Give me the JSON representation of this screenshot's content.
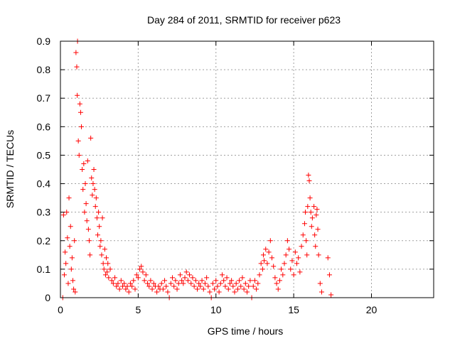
{
  "chart_data": {
    "type": "scatter",
    "title": "Day 284 of 2011, SRMTID for receiver p623",
    "xlabel": "GPS time / hours",
    "ylabel": "SRMTID / TECUs",
    "xlim": [
      0,
      24
    ],
    "ylim": [
      0,
      0.9
    ],
    "xticks": [
      0,
      5,
      10,
      15,
      20
    ],
    "yticks": [
      0,
      0.1,
      0.2,
      0.3,
      0.4,
      0.5,
      0.6,
      0.7,
      0.8,
      0.9
    ],
    "xtick_labels": [
      "0",
      "5",
      "10",
      "15",
      "20"
    ],
    "ytick_labels": [
      "0",
      "0.1",
      "0.2",
      "0.3",
      "0.4",
      "0.5",
      "0.6",
      "0.7",
      "0.8",
      "0.9"
    ],
    "grid": true,
    "marker": "plus",
    "marker_color": "#ff0000",
    "series": [
      {
        "points": [
          [
            0.15,
            0.0
          ],
          [
            0.2,
            0.29
          ],
          [
            0.25,
            0.08
          ],
          [
            0.3,
            0.16
          ],
          [
            0.35,
            0.12
          ],
          [
            0.4,
            0.3
          ],
          [
            0.45,
            0.21
          ],
          [
            0.5,
            0.05
          ],
          [
            0.55,
            0.35
          ],
          [
            0.6,
            0.18
          ],
          [
            0.65,
            0.25
          ],
          [
            0.7,
            0.1
          ],
          [
            0.75,
            0.14
          ],
          [
            0.8,
            0.06
          ],
          [
            0.85,
            0.03
          ],
          [
            0.9,
            0.2
          ],
          [
            0.95,
            0.02
          ],
          [
            1.0,
            0.86
          ],
          [
            1.05,
            0.81
          ],
          [
            1.08,
            0.71
          ],
          [
            1.1,
            0.9
          ],
          [
            1.15,
            0.55
          ],
          [
            1.2,
            0.5
          ],
          [
            1.25,
            0.68
          ],
          [
            1.3,
            0.65
          ],
          [
            1.35,
            0.6
          ],
          [
            1.4,
            0.45
          ],
          [
            1.45,
            0.38
          ],
          [
            1.5,
            0.47
          ],
          [
            1.55,
            0.3
          ],
          [
            1.6,
            0.4
          ],
          [
            1.65,
            0.33
          ],
          [
            1.7,
            0.27
          ],
          [
            1.75,
            0.48
          ],
          [
            1.8,
            0.24
          ],
          [
            1.85,
            0.2
          ],
          [
            1.9,
            0.15
          ],
          [
            1.95,
            0.56
          ],
          [
            2.0,
            0.42
          ],
          [
            2.05,
            0.36
          ],
          [
            2.1,
            0.4
          ],
          [
            2.15,
            0.45
          ],
          [
            2.2,
            0.38
          ],
          [
            2.25,
            0.32
          ],
          [
            2.3,
            0.35
          ],
          [
            2.35,
            0.28
          ],
          [
            2.4,
            0.22
          ],
          [
            2.45,
            0.3
          ],
          [
            2.5,
            0.25
          ],
          [
            2.55,
            0.18
          ],
          [
            2.6,
            0.2
          ],
          [
            2.65,
            0.15
          ],
          [
            2.7,
            0.28
          ],
          [
            2.75,
            0.12
          ],
          [
            2.8,
            0.1
          ],
          [
            2.85,
            0.17
          ],
          [
            2.9,
            0.08
          ],
          [
            2.95,
            0.14
          ],
          [
            3.0,
            0.09
          ],
          [
            3.05,
            0.12
          ],
          [
            3.1,
            0.07
          ],
          [
            3.2,
            0.1
          ],
          [
            3.3,
            0.06
          ],
          [
            3.4,
            0.05
          ],
          [
            3.5,
            0.07
          ],
          [
            3.6,
            0.04
          ],
          [
            3.7,
            0.05
          ],
          [
            3.8,
            0.03
          ],
          [
            3.9,
            0.06
          ],
          [
            4.0,
            0.04
          ],
          [
            4.1,
            0.05
          ],
          [
            4.2,
            0.03
          ],
          [
            4.3,
            0.04
          ],
          [
            4.4,
            0.02
          ],
          [
            4.5,
            0.05
          ],
          [
            4.6,
            0.04
          ],
          [
            4.7,
            0.06
          ],
          [
            4.8,
            0.03
          ],
          [
            4.9,
            0.08
          ],
          [
            5.0,
            0.07
          ],
          [
            5.1,
            0.1
          ],
          [
            5.2,
            0.11
          ],
          [
            5.3,
            0.09
          ],
          [
            5.4,
            0.06
          ],
          [
            5.5,
            0.08
          ],
          [
            5.6,
            0.05
          ],
          [
            5.7,
            0.04
          ],
          [
            5.8,
            0.06
          ],
          [
            5.9,
            0.03
          ],
          [
            6.0,
            0.05
          ],
          [
            6.1,
            0.04
          ],
          [
            6.2,
            0.02
          ],
          [
            6.3,
            0.04
          ],
          [
            6.4,
            0.03
          ],
          [
            6.5,
            0.05
          ],
          [
            6.6,
            0.03
          ],
          [
            6.7,
            0.06
          ],
          [
            6.8,
            0.04
          ],
          [
            6.9,
            0.02
          ],
          [
            7.0,
            0.0
          ],
          [
            7.1,
            0.05
          ],
          [
            7.2,
            0.07
          ],
          [
            7.3,
            0.04
          ],
          [
            7.4,
            0.06
          ],
          [
            7.5,
            0.03
          ],
          [
            7.6,
            0.05
          ],
          [
            7.7,
            0.08
          ],
          [
            7.8,
            0.06
          ],
          [
            7.9,
            0.05
          ],
          [
            8.0,
            0.07
          ],
          [
            8.1,
            0.09
          ],
          [
            8.2,
            0.06
          ],
          [
            8.3,
            0.08
          ],
          [
            8.4,
            0.05
          ],
          [
            8.5,
            0.07
          ],
          [
            8.6,
            0.04
          ],
          [
            8.7,
            0.06
          ],
          [
            8.8,
            0.03
          ],
          [
            8.9,
            0.05
          ],
          [
            9.0,
            0.04
          ],
          [
            9.1,
            0.06
          ],
          [
            9.2,
            0.03
          ],
          [
            9.3,
            0.05
          ],
          [
            9.4,
            0.07
          ],
          [
            9.5,
            0.04
          ],
          [
            9.6,
            0.02
          ],
          [
            9.7,
            0.0
          ],
          [
            9.8,
            0.05
          ],
          [
            9.9,
            0.03
          ],
          [
            10.0,
            0.06
          ],
          [
            10.1,
            0.04
          ],
          [
            10.2,
            0.02
          ],
          [
            10.3,
            0.05
          ],
          [
            10.4,
            0.08
          ],
          [
            10.5,
            0.06
          ],
          [
            10.6,
            0.04
          ],
          [
            10.7,
            0.07
          ],
          [
            10.8,
            0.03
          ],
          [
            10.9,
            0.05
          ],
          [
            11.0,
            0.06
          ],
          [
            11.1,
            0.04
          ],
          [
            11.2,
            0.02
          ],
          [
            11.3,
            0.05
          ],
          [
            11.4,
            0.03
          ],
          [
            11.5,
            0.06
          ],
          [
            11.6,
            0.04
          ],
          [
            11.7,
            0.07
          ],
          [
            11.8,
            0.03
          ],
          [
            11.9,
            0.05
          ],
          [
            12.0,
            0.02
          ],
          [
            12.1,
            0.04
          ],
          [
            12.2,
            0.06
          ],
          [
            12.3,
            0.0
          ],
          [
            12.4,
            0.04
          ],
          [
            12.5,
            0.06
          ],
          [
            12.6,
            0.03
          ],
          [
            12.7,
            0.05
          ],
          [
            12.8,
            0.08
          ],
          [
            12.9,
            0.12
          ],
          [
            13.0,
            0.1
          ],
          [
            13.05,
            0.15
          ],
          [
            13.1,
            0.13
          ],
          [
            13.2,
            0.17
          ],
          [
            13.3,
            0.12
          ],
          [
            13.4,
            0.16
          ],
          [
            13.5,
            0.2
          ],
          [
            13.6,
            0.14
          ],
          [
            13.7,
            0.11
          ],
          [
            13.8,
            0.07
          ],
          [
            13.9,
            0.05
          ],
          [
            14.0,
            0.03
          ],
          [
            14.1,
            0.06
          ],
          [
            14.2,
            0.1
          ],
          [
            14.3,
            0.08
          ],
          [
            14.4,
            0.12
          ],
          [
            14.5,
            0.15
          ],
          [
            14.6,
            0.2
          ],
          [
            14.7,
            0.17
          ],
          [
            14.8,
            0.1
          ],
          [
            14.9,
            0.13
          ],
          [
            15.0,
            0.08
          ],
          [
            15.1,
            0.16
          ],
          [
            15.2,
            0.12
          ],
          [
            15.3,
            0.14
          ],
          [
            15.4,
            0.09
          ],
          [
            15.5,
            0.18
          ],
          [
            15.6,
            0.22
          ],
          [
            15.7,
            0.26
          ],
          [
            15.75,
            0.3
          ],
          [
            15.8,
            0.2
          ],
          [
            15.85,
            0.15
          ],
          [
            15.9,
            0.32
          ],
          [
            15.95,
            0.43
          ],
          [
            16.0,
            0.41
          ],
          [
            16.05,
            0.35
          ],
          [
            16.1,
            0.3
          ],
          [
            16.15,
            0.25
          ],
          [
            16.2,
            0.28
          ],
          [
            16.3,
            0.32
          ],
          [
            16.35,
            0.22
          ],
          [
            16.4,
            0.18
          ],
          [
            16.45,
            0.29
          ],
          [
            16.5,
            0.31
          ],
          [
            16.55,
            0.24
          ],
          [
            16.6,
            0.15
          ],
          [
            16.7,
            0.05
          ],
          [
            16.8,
            0.02
          ],
          [
            17.2,
            0.14
          ],
          [
            17.3,
            0.08
          ],
          [
            17.4,
            0.01
          ]
        ]
      }
    ]
  }
}
